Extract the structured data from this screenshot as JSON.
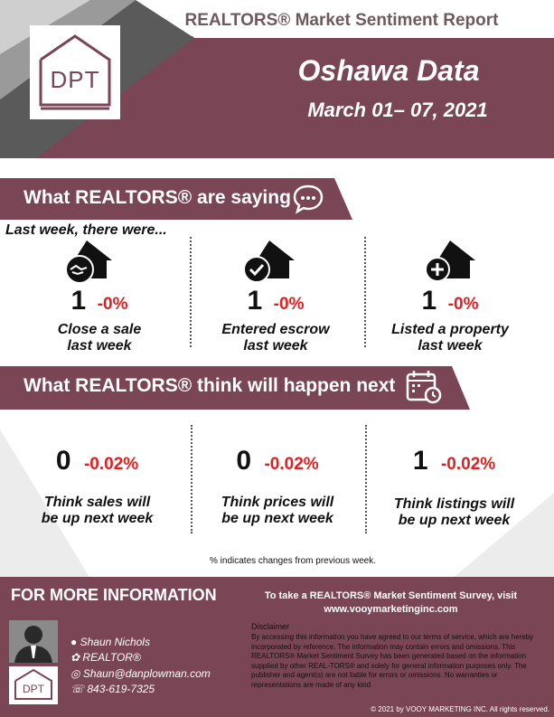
{
  "header": {
    "report_title": "REALTORS® Market Sentiment Report",
    "city": "Oshawa Data",
    "date_range": "March 01– 07, 2021",
    "logo_text": "DPT"
  },
  "saying": {
    "banner": "What REALTORS® are saying",
    "intro": "Last week, there were...",
    "items": [
      {
        "value": "1",
        "change": "-0%",
        "label_line1": "Close a sale",
        "label_line2": "last week",
        "icon": "handshake-house-icon"
      },
      {
        "value": "1",
        "change": "-0%",
        "label_line1": "Entered escrow",
        "label_line2": "last week",
        "icon": "check-house-icon"
      },
      {
        "value": "1",
        "change": "-0%",
        "label_line1": "Listed a property",
        "label_line2": "last week",
        "icon": "plus-house-icon"
      }
    ]
  },
  "next": {
    "banner": "What REALTORS® think will happen next",
    "items": [
      {
        "value": "0",
        "change": "-0.02%",
        "label_line1": "Think sales will",
        "label_line2": "be up next week"
      },
      {
        "value": "0",
        "change": "-0.02%",
        "label_line1": "Think prices will",
        "label_line2": "be up next week"
      },
      {
        "value": "1",
        "change": "-0.02%",
        "label_line1": "Think listings will",
        "label_line2": "be up next week"
      }
    ],
    "note": "% indicates changes from previous week."
  },
  "footer": {
    "more_info": "FOR MORE INFORMATION",
    "survey_line1": "To take a REALTORS® Market Sentiment Survey, visit",
    "survey_line2": "www.vooymarketinginc.com",
    "agent_name": "Shaun Nichols",
    "agent_title": "REALTOR®",
    "agent_email": "Shaun@danplowman.com",
    "agent_phone": "843-619-7325",
    "logo_text": "DPT",
    "disclaimer_title": "Disclaimer",
    "disclaimer_body": "By accessing this information you have agreed to our terms of service, which are  hereby incorporated by reference. The information may contain errors and omissions.  This  REALTORS® Market Sentiment Survey has been generated based on the information supplied by other REAL-TORS® and solely for general information purposes only. The publisher and agent(s) are not liable for errors or omissions. No warranties or representations are made of any kind",
    "copyright": "© 2021 by VOOY MARKETING INC. All rights reserved."
  },
  "colors": {
    "brand": "#7a4555",
    "change": "#e02020",
    "grey": "#6e6e6e"
  }
}
